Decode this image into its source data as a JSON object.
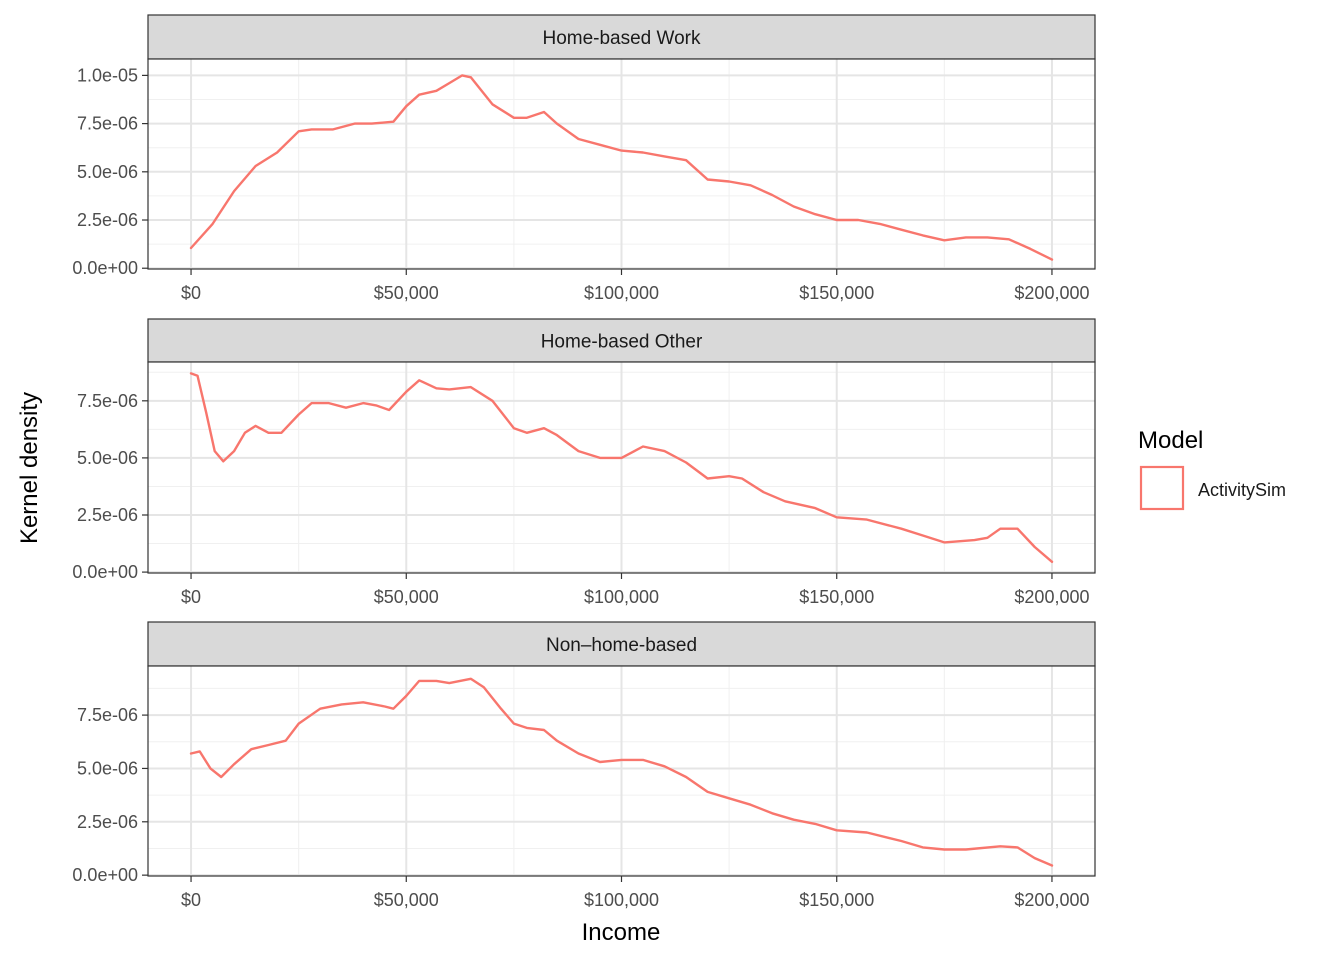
{
  "chart_data": {
    "type": "line",
    "ylabel": "Kernel density",
    "xlabel": "Income",
    "x_tick_values": [
      0,
      50000,
      100000,
      150000,
      200000
    ],
    "x_tick_labels": [
      "$0",
      "$50,000",
      "$100,000",
      "$150,000",
      "$200,000"
    ],
    "x_range": [
      -10000,
      210000
    ],
    "grid": true,
    "legend": {
      "title": "Model",
      "position": "right",
      "entries": [
        {
          "label": "ActivitySim",
          "color": "#F8766D"
        }
      ]
    },
    "panels": [
      {
        "title": "Home-based Work",
        "ylim": [
          -4e-08,
          1.085e-05
        ],
        "y_tick_values": [
          0,
          2.5e-06,
          5e-06,
          7.5e-06,
          1e-05
        ],
        "y_tick_labels": [
          "0.0e+00",
          "2.5e-06",
          "5.0e-06",
          "7.5e-06",
          "1.0e-05"
        ],
        "series": [
          {
            "name": "ActivitySim",
            "color": "#F8766D",
            "x": [
              0,
              5000,
              10000,
              15000,
              20000,
              25000,
              28000,
              33000,
              38000,
              42000,
              47000,
              50000,
              53000,
              57000,
              60000,
              63000,
              65000,
              70000,
              75000,
              78000,
              82000,
              85000,
              90000,
              95000,
              100000,
              105000,
              110000,
              115000,
              120000,
              125000,
              130000,
              135000,
              140000,
              145000,
              150000,
              155000,
              160000,
              165000,
              170000,
              175000,
              180000,
              185000,
              190000,
              195000,
              200000
            ],
            "y": [
              1.05e-06,
              2.3e-06,
              4e-06,
              5.3e-06,
              6e-06,
              7.1e-06,
              7.2e-06,
              7.2e-06,
              7.5e-06,
              7.5e-06,
              7.6e-06,
              8.4e-06,
              9e-06,
              9.2e-06,
              9.6e-06,
              1e-05,
              9.9e-06,
              8.5e-06,
              7.8e-06,
              7.8e-06,
              8.1e-06,
              7.5e-06,
              6.7e-06,
              6.4e-06,
              6.1e-06,
              6e-06,
              5.8e-06,
              5.6e-06,
              4.6e-06,
              4.5e-06,
              4.3e-06,
              3.8e-06,
              3.2e-06,
              2.8e-06,
              2.5e-06,
              2.5e-06,
              2.3e-06,
              2e-06,
              1.7e-06,
              1.45e-06,
              1.6e-06,
              1.6e-06,
              1.5e-06,
              1e-06,
              4.5e-07
            ]
          }
        ]
      },
      {
        "title": "Home-based Other",
        "ylim": [
          -4e-08,
          9.2e-06
        ],
        "y_tick_values": [
          0,
          2.5e-06,
          5e-06,
          7.5e-06
        ],
        "y_tick_labels": [
          "0.0e+00",
          "2.5e-06",
          "5.0e-06",
          "7.5e-06"
        ],
        "series": [
          {
            "name": "ActivitySim",
            "color": "#F8766D",
            "x": [
              0,
              1500,
              3500,
              5500,
              7500,
              10000,
              12500,
              15000,
              18000,
              21000,
              25000,
              28000,
              32000,
              36000,
              40000,
              43000,
              46000,
              50000,
              53000,
              57000,
              60000,
              65000,
              70000,
              75000,
              78000,
              82000,
              85000,
              90000,
              95000,
              100000,
              105000,
              110000,
              115000,
              120000,
              125000,
              128000,
              133000,
              138000,
              145000,
              150000,
              157000,
              165000,
              170000,
              175000,
              182000,
              185000,
              188000,
              192000,
              196000,
              200000
            ],
            "y": [
              8.7e-06,
              8.6e-06,
              7e-06,
              5.3e-06,
              4.85e-06,
              5.3e-06,
              6.1e-06,
              6.4e-06,
              6.1e-06,
              6.1e-06,
              6.9e-06,
              7.4e-06,
              7.4e-06,
              7.2e-06,
              7.4e-06,
              7.3e-06,
              7.1e-06,
              7.9e-06,
              8.4e-06,
              8.05e-06,
              8e-06,
              8.1e-06,
              7.5e-06,
              6.3e-06,
              6.1e-06,
              6.3e-06,
              6e-06,
              5.3e-06,
              5e-06,
              5e-06,
              5.5e-06,
              5.3e-06,
              4.8e-06,
              4.1e-06,
              4.2e-06,
              4.1e-06,
              3.5e-06,
              3.1e-06,
              2.8e-06,
              2.4e-06,
              2.3e-06,
              1.9e-06,
              1.6e-06,
              1.3e-06,
              1.4e-06,
              1.5e-06,
              1.9e-06,
              1.9e-06,
              1.1e-06,
              4.5e-07
            ]
          }
        ]
      },
      {
        "title": "Non–home-based",
        "ylim": [
          -4e-08,
          9.8e-06
        ],
        "y_tick_values": [
          0,
          2.5e-06,
          5e-06,
          7.5e-06
        ],
        "y_tick_labels": [
          "0.0e+00",
          "2.5e-06",
          "5.0e-06",
          "7.5e-06"
        ],
        "series": [
          {
            "name": "ActivitySim",
            "color": "#F8766D",
            "x": [
              0,
              2000,
              4500,
              7000,
              10000,
              14000,
              18000,
              22000,
              25000,
              30000,
              35000,
              40000,
              45000,
              47000,
              50000,
              53000,
              57000,
              60000,
              65000,
              68000,
              72000,
              75000,
              78000,
              82000,
              85000,
              90000,
              95000,
              100000,
              105000,
              110000,
              115000,
              120000,
              125000,
              130000,
              135000,
              140000,
              145000,
              150000,
              157000,
              165000,
              170000,
              175000,
              180000,
              188000,
              192000,
              196000,
              200000
            ],
            "y": [
              5.7e-06,
              5.8e-06,
              5e-06,
              4.6e-06,
              5.2e-06,
              5.9e-06,
              6.1e-06,
              6.3e-06,
              7.1e-06,
              7.8e-06,
              8e-06,
              8.1e-06,
              7.9e-06,
              7.8e-06,
              8.4e-06,
              9.1e-06,
              9.1e-06,
              9e-06,
              9.2e-06,
              8.8e-06,
              7.8e-06,
              7.1e-06,
              6.9e-06,
              6.8e-06,
              6.3e-06,
              5.7e-06,
              5.3e-06,
              5.4e-06,
              5.4e-06,
              5.1e-06,
              4.6e-06,
              3.9e-06,
              3.6e-06,
              3.3e-06,
              2.9e-06,
              2.6e-06,
              2.4e-06,
              2.1e-06,
              2e-06,
              1.6e-06,
              1.3e-06,
              1.2e-06,
              1.2e-06,
              1.35e-06,
              1.3e-06,
              8e-07,
              4.5e-07
            ]
          }
        ]
      }
    ]
  }
}
